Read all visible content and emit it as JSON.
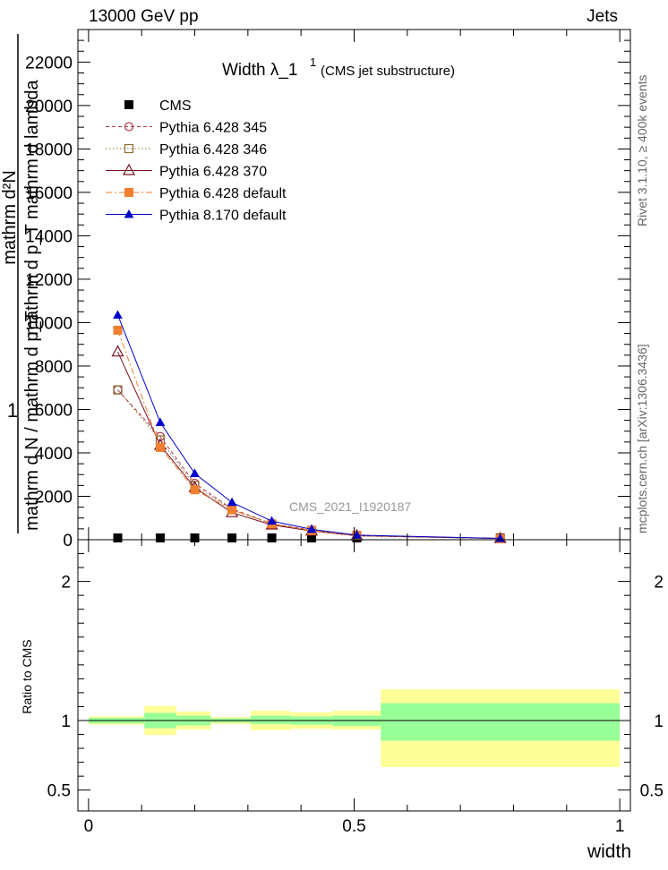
{
  "header": {
    "energy_label": "13000 GeV pp",
    "category_label": "Jets"
  },
  "side_labels": {
    "rivet": "Rivet 3.1.10, ≥ 400k events",
    "mcplots": "mcplots.cern.ch [arXiv:1306.3436]"
  },
  "chart_data": [
    {
      "type": "line",
      "title_main": "Width λ_1",
      "title_sup": "1",
      "title_sub": "(CMS jet substructure)",
      "analysis_tag": "CMS_2021_I1920187",
      "ylabel_numerator": "1",
      "ylabel_lines": [
        "mathrm d²N",
        "mathrm d p_T mathrm d lambda",
        "mathrm d N / mathrm d p_T"
      ],
      "xlim": [
        -0.02,
        1.02
      ],
      "ylim": [
        0,
        23500
      ],
      "yticks": [
        0,
        2000,
        4000,
        6000,
        8000,
        10000,
        12000,
        14000,
        16000,
        18000,
        20000,
        22000
      ],
      "ytick_labels": [
        "0",
        "2000",
        "4000",
        "6000",
        "8000",
        "10000",
        "12000",
        "14000",
        "16000",
        "18000",
        "20000",
        "22000"
      ],
      "x": [
        0.055,
        0.135,
        0.2,
        0.27,
        0.345,
        0.42,
        0.505,
        0.775
      ],
      "legend_position": "top-left",
      "series": [
        {
          "name": "CMS",
          "marker": "square-filled",
          "color": "#000000",
          "dash": "none",
          "values": [
            80,
            70,
            60,
            50,
            40,
            30,
            20,
            10
          ]
        },
        {
          "name": "Pythia 6.428 345",
          "marker": "circle-open",
          "color": "#b03a48",
          "dash": "4,3",
          "values": [
            6900,
            4750,
            2600,
            1420,
            740,
            440,
            200,
            60
          ]
        },
        {
          "name": "Pythia 6.428 346",
          "marker": "square-open",
          "color": "#8b6a35",
          "dash": "1.5,2.5",
          "values": [
            6900,
            4600,
            2500,
            1380,
            720,
            430,
            195,
            58
          ]
        },
        {
          "name": "Pythia 6.428 370",
          "marker": "triangle-open",
          "color": "#7a1020",
          "dash": "none",
          "values": [
            8650,
            4350,
            2400,
            1250,
            680,
            400,
            180,
            55
          ]
        },
        {
          "name": "Pythia 6.428 default",
          "marker": "square-filled",
          "color": "#f08030",
          "dash": "7,3,2,3",
          "values": [
            9650,
            4250,
            2300,
            1380,
            730,
            420,
            190,
            56
          ]
        },
        {
          "name": "Pythia 8.170 default",
          "marker": "triangle-filled",
          "color": "#0000cc",
          "dash": "none",
          "values": [
            10350,
            5400,
            3050,
            1720,
            860,
            480,
            210,
            60
          ]
        }
      ]
    },
    {
      "type": "area",
      "ylabel": "Ratio to CMS",
      "xlabel": "width",
      "xlim": [
        -0.02,
        1.02
      ],
      "ylim": [
        0.35,
        2.3
      ],
      "xticks": [
        0,
        0.5,
        1
      ],
      "xtick_labels": [
        "0",
        "0.5",
        "1"
      ],
      "yticks": [
        0.5,
        1,
        2
      ],
      "ytick_labels": [
        "0.5",
        "1",
        "2"
      ],
      "bins": [
        {
          "lo": 0.0,
          "hi": 0.105,
          "inner": [
            0.98,
            1.02
          ],
          "outer": [
            0.97,
            1.03
          ]
        },
        {
          "lo": 0.105,
          "hi": 0.165,
          "inner": [
            0.945,
            1.055
          ],
          "outer": [
            0.895,
            1.105
          ]
        },
        {
          "lo": 0.165,
          "hi": 0.23,
          "inner": [
            0.965,
            1.035
          ],
          "outer": [
            0.935,
            1.065
          ]
        },
        {
          "lo": 0.23,
          "hi": 0.305,
          "inner": [
            0.985,
            1.015
          ],
          "outer": [
            0.975,
            1.025
          ]
        },
        {
          "lo": 0.305,
          "hi": 0.38,
          "inner": [
            0.975,
            1.035
          ],
          "outer": [
            0.93,
            1.07
          ]
        },
        {
          "lo": 0.38,
          "hi": 0.46,
          "inner": [
            0.97,
            1.03
          ],
          "outer": [
            0.94,
            1.06
          ]
        },
        {
          "lo": 0.46,
          "hi": 0.55,
          "inner": [
            0.96,
            1.035
          ],
          "outer": [
            0.935,
            1.07
          ]
        },
        {
          "lo": 0.55,
          "hi": 1.0,
          "inner": [
            0.855,
            1.125
          ],
          "outer": [
            0.665,
            1.225
          ]
        }
      ],
      "colors": {
        "inner": "#99ff99",
        "outer": "#ffff99",
        "reference": "#000000"
      }
    }
  ]
}
